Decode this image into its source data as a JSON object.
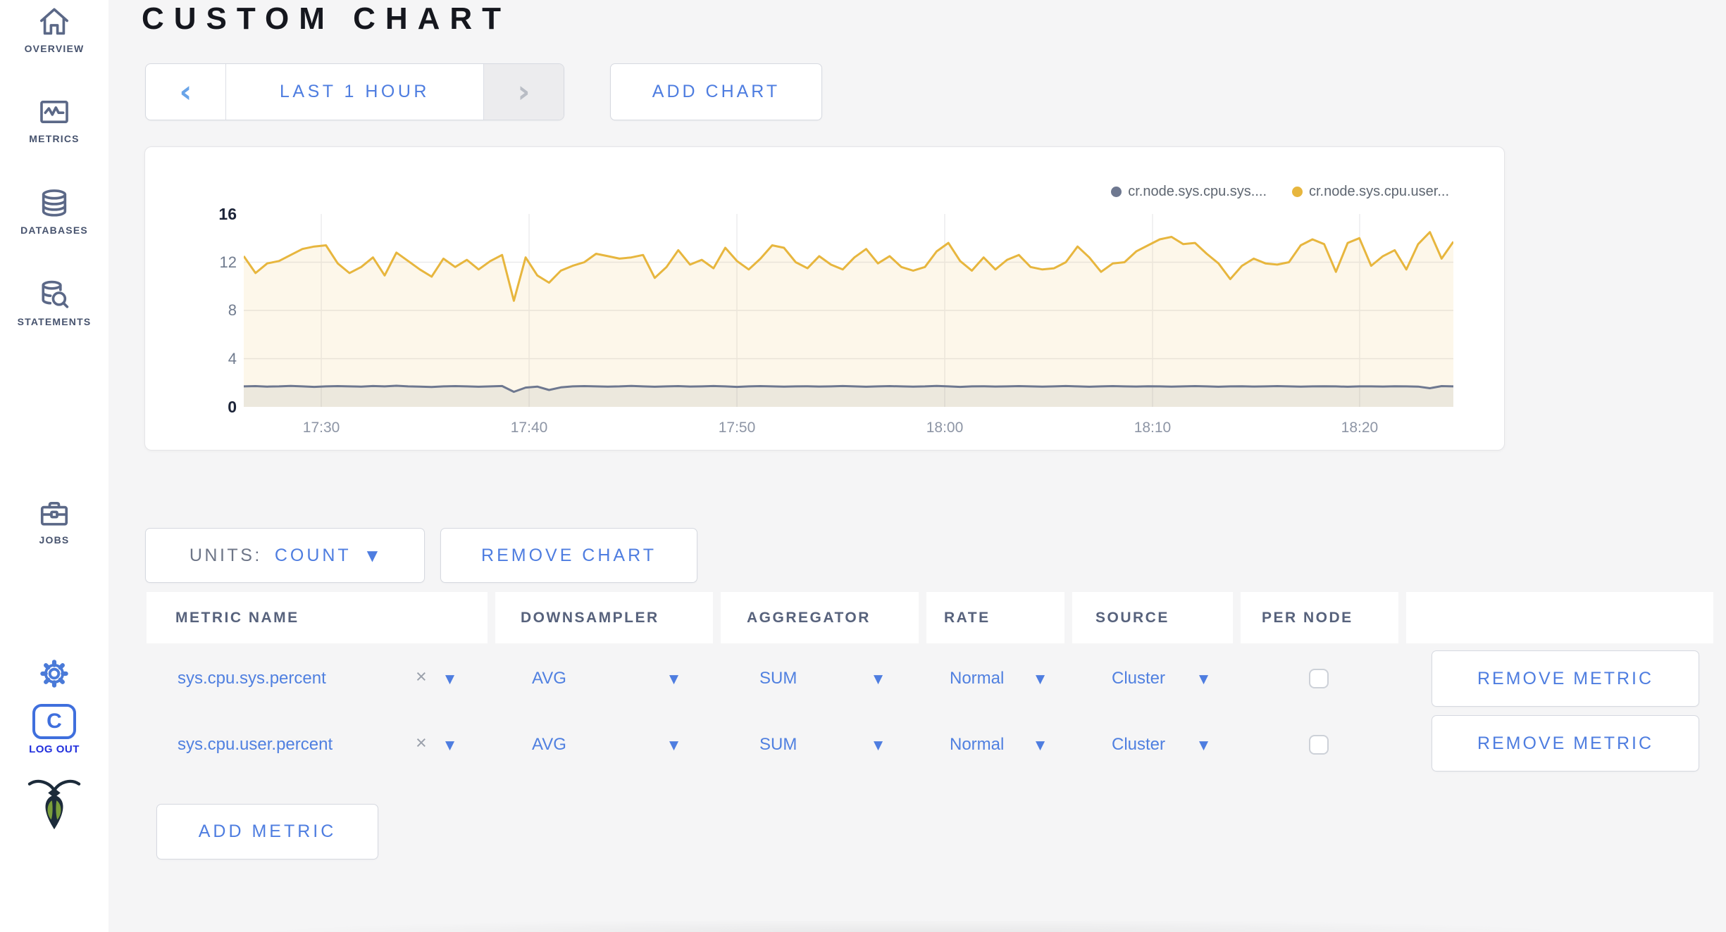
{
  "sidebar": {
    "items": [
      {
        "icon": "home-icon",
        "label": "OVERVIEW"
      },
      {
        "icon": "metrics-icon",
        "label": "METRICS"
      },
      {
        "icon": "databases-icon",
        "label": "DATABASES"
      },
      {
        "icon": "statements-icon",
        "label": "STATEMENTS"
      },
      {
        "icon": "jobs-icon",
        "label": "JOBS"
      }
    ],
    "logout_label": "LOG OUT",
    "logo_letter": "C"
  },
  "header": {
    "title": "CUSTOM CHART",
    "time_range": "LAST 1 HOUR",
    "prev_glyph": "‹",
    "next_glyph": "›",
    "add_chart": "ADD CHART"
  },
  "chart_data": {
    "type": "line",
    "title": "",
    "xlabel": "",
    "ylabel": "",
    "ylim": [
      0,
      16
    ],
    "y_ticks": [
      0,
      4,
      8,
      12,
      16
    ],
    "grid": true,
    "legend_position": "top-right",
    "x_ticks": [
      {
        "label": "17:30",
        "f": 0.0641
      },
      {
        "label": "17:40",
        "f": 0.2359
      },
      {
        "label": "17:50",
        "f": 0.4077
      },
      {
        "label": "18:00",
        "f": 0.5795
      },
      {
        "label": "18:10",
        "f": 0.7513
      },
      {
        "label": "18:20",
        "f": 0.9225
      }
    ],
    "x_range": "17:26 - 18:25",
    "series": [
      {
        "name": "cr.node.sys.cpu.sys....",
        "color": "#6e7890",
        "fill": "rgba(110,120,144,0.13)",
        "values": [
          1.7,
          1.72,
          1.68,
          1.7,
          1.74,
          1.7,
          1.66,
          1.7,
          1.72,
          1.7,
          1.68,
          1.73,
          1.7,
          1.75,
          1.7,
          1.68,
          1.65,
          1.7,
          1.72,
          1.7,
          1.67,
          1.7,
          1.73,
          1.25,
          1.6,
          1.68,
          1.4,
          1.62,
          1.7,
          1.72,
          1.7,
          1.68,
          1.7,
          1.74,
          1.7,
          1.67,
          1.7,
          1.72,
          1.69,
          1.7,
          1.73,
          1.7,
          1.66,
          1.7,
          1.72,
          1.7,
          1.68,
          1.7,
          1.71,
          1.69,
          1.7,
          1.73,
          1.7,
          1.67,
          1.7,
          1.72,
          1.7,
          1.68,
          1.7,
          1.74,
          1.7,
          1.66,
          1.7,
          1.71,
          1.69,
          1.7,
          1.72,
          1.7,
          1.68,
          1.7,
          1.73,
          1.7,
          1.67,
          1.7,
          1.72,
          1.7,
          1.69,
          1.71,
          1.7,
          1.68,
          1.7,
          1.72,
          1.7,
          1.67,
          1.7,
          1.71,
          1.69,
          1.7,
          1.72,
          1.7,
          1.68,
          1.7,
          1.71,
          1.7,
          1.67,
          1.7,
          1.7,
          1.69,
          1.71,
          1.7,
          1.68,
          1.55,
          1.72,
          1.7
        ]
      },
      {
        "name": "cr.node.sys.cpu.user...",
        "color": "#e7b63e",
        "fill": "rgba(238,196,90,0.13)",
        "values": [
          12.5,
          11.1,
          11.9,
          12.1,
          12.6,
          13.1,
          13.3,
          13.4,
          11.9,
          11.1,
          11.6,
          12.4,
          10.9,
          12.8,
          12.1,
          11.4,
          10.8,
          12.3,
          11.6,
          12.2,
          11.4,
          12.1,
          12.6,
          8.8,
          12.4,
          10.9,
          10.3,
          11.3,
          11.7,
          12.0,
          12.7,
          12.5,
          12.3,
          12.4,
          12.6,
          10.7,
          11.6,
          13.0,
          11.8,
          12.2,
          11.5,
          13.2,
          12.1,
          11.4,
          12.3,
          13.4,
          13.2,
          12.0,
          11.5,
          12.5,
          11.8,
          11.4,
          12.4,
          13.1,
          11.9,
          12.5,
          11.6,
          11.3,
          11.6,
          12.9,
          13.6,
          12.1,
          11.3,
          12.4,
          11.4,
          12.2,
          12.6,
          11.6,
          11.4,
          11.5,
          12.0,
          13.3,
          12.4,
          11.2,
          11.9,
          12.0,
          12.9,
          13.4,
          13.9,
          14.1,
          13.5,
          13.6,
          12.7,
          11.9,
          10.6,
          11.7,
          12.3,
          11.9,
          11.8,
          12.0,
          13.4,
          13.9,
          13.5,
          11.2,
          13.6,
          14.0,
          11.7,
          12.5,
          13.0,
          11.4,
          13.5,
          14.5,
          12.3,
          13.7
        ]
      }
    ]
  },
  "controls": {
    "units_label": "UNITS:",
    "units_value": "COUNT",
    "remove_chart": "REMOVE CHART",
    "add_metric": "ADD METRIC"
  },
  "metrics_table": {
    "headers": [
      "METRIC NAME",
      "DOWNSAMPLER",
      "AGGREGATOR",
      "RATE",
      "SOURCE",
      "PER NODE"
    ],
    "rows": [
      {
        "name": "sys.cpu.sys.percent",
        "clear": "×",
        "downsampler": "AVG",
        "aggregator": "SUM",
        "rate": "Normal",
        "source": "Cluster",
        "per_node_checked": false,
        "remove": "REMOVE METRIC"
      },
      {
        "name": "sys.cpu.user.percent",
        "clear": "×",
        "downsampler": "AVG",
        "aggregator": "SUM",
        "rate": "Normal",
        "source": "Cluster",
        "per_node_checked": false,
        "remove": "REMOVE METRIC"
      }
    ]
  }
}
